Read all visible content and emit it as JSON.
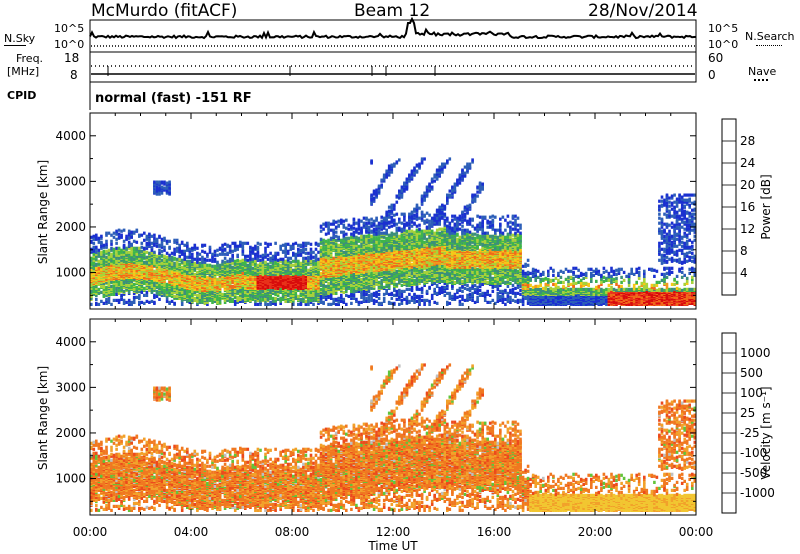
{
  "header": {
    "station": "McMurdo (fitACF)",
    "beam": "Beam 12",
    "date": "28/Nov/2014"
  },
  "top_strip": {
    "left_label": "N.Sky",
    "right_label": "N.Search",
    "y_ticks": [
      "10^5",
      "10^0"
    ],
    "right_ticks": [
      "10^5",
      "10^0"
    ]
  },
  "freq_strip": {
    "left_label_1": "Freq.",
    "left_label_2": "[MHz]",
    "left_ticks": [
      "18",
      "8"
    ],
    "right_label": "Nave",
    "right_ticks": [
      "60",
      "0"
    ],
    "cpid_label": "CPID",
    "cpid_text": "normal (fast) -151 RF"
  },
  "colors": {
    "power_scale": [
      "#1a30d0",
      "#2d5fb8",
      "#3c8f7a",
      "#3fb54a",
      "#a8d23a",
      "#f5c918",
      "#f39a1c",
      "#f06a1a",
      "#e8321a",
      "#d80c0c"
    ],
    "velocity_scale": [
      "#1c3fc9",
      "#3a78c4",
      "#3c9a6a",
      "#62c43a",
      "#bfbfbf",
      "#f2c631",
      "#f2a12a",
      "#f07820",
      "#ec4a1c",
      "#dc1010"
    ]
  },
  "chart_data": [
    {
      "type": "heatmap",
      "name": "power",
      "ylabel": "Slant Range [km]",
      "xlabel": "",
      "xlim": [
        "00:00",
        "24:00"
      ],
      "ylim": [
        200,
        4500
      ],
      "yticks": [
        "1000",
        "2000",
        "3000",
        "4000"
      ],
      "xticks": [
        "00:00",
        "04:00",
        "08:00",
        "12:00",
        "16:00",
        "20:00",
        "00:00"
      ],
      "colorbar": {
        "label": "Power [dB]",
        "range": [
          0,
          30
        ],
        "ticks": [
          "4",
          "8",
          "12",
          "16",
          "20",
          "24",
          "28"
        ]
      }
    },
    {
      "type": "heatmap",
      "name": "velocity",
      "ylabel": "Slant Range [km]",
      "xlabel": "Time UT",
      "xlim": [
        "00:00",
        "24:00"
      ],
      "ylim": [
        200,
        4500
      ],
      "yticks": [
        "1000",
        "2000",
        "3000",
        "4000"
      ],
      "xticks": [
        "00:00",
        "04:00",
        "08:00",
        "12:00",
        "16:00",
        "20:00",
        "00:00"
      ],
      "colorbar": {
        "label": "Velocity [m s⁻¹]",
        "range": [
          -1000,
          1000
        ],
        "ticks": [
          "1000",
          "500",
          "100",
          "25",
          "-25",
          "-100",
          "-500",
          "-1000"
        ]
      }
    }
  ]
}
